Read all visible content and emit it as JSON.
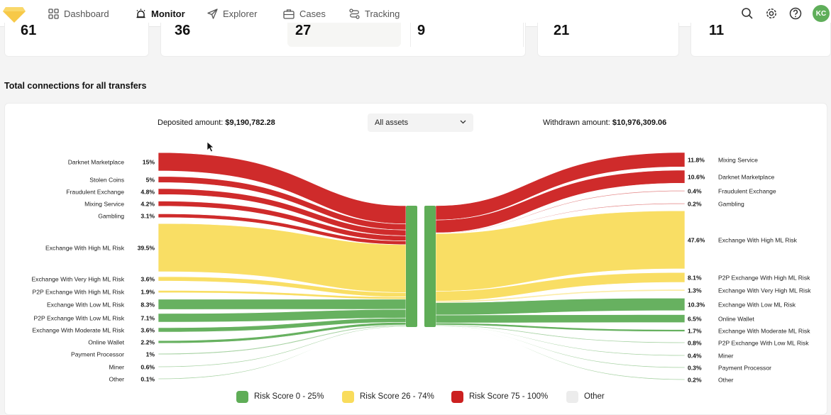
{
  "nav": {
    "items": [
      {
        "label": "Dashboard",
        "icon": "grid-icon",
        "active": false
      },
      {
        "label": "Monitor",
        "icon": "alarm-icon",
        "active": true
      },
      {
        "label": "Explorer",
        "icon": "send-icon",
        "active": false
      },
      {
        "label": "Cases",
        "icon": "briefcase-icon",
        "active": false
      },
      {
        "label": "Tracking",
        "icon": "route-icon",
        "active": false
      }
    ],
    "avatar_initials": "KC",
    "right_icons": [
      "search-icon",
      "gear-icon",
      "help-icon"
    ]
  },
  "stats": [
    "61",
    "36",
    "27",
    "9",
    "21",
    "11"
  ],
  "section_title": "Total connections for all transfers",
  "deposited": {
    "label": "Deposited amount:",
    "value": "$9,190,782.28"
  },
  "withdrawn": {
    "label": "Withdrawn amount:",
    "value": "$10,976,309.06"
  },
  "assets_select": {
    "value": "All assets"
  },
  "colors": {
    "red": "#cc2020",
    "yellow": "#f9dc5c",
    "green": "#5fad57",
    "other": "#ececec"
  },
  "left_flows": [
    {
      "label": "Darknet Marketplace",
      "pct": "15%",
      "risk": "red"
    },
    {
      "label": "Stolen Coins",
      "pct": "5%",
      "risk": "red"
    },
    {
      "label": "Fraudulent Exchange",
      "pct": "4.8%",
      "risk": "red"
    },
    {
      "label": "Mixing Service",
      "pct": "4.2%",
      "risk": "red"
    },
    {
      "label": "Gambling",
      "pct": "3.1%",
      "risk": "red"
    },
    {
      "label": "Exchange With High ML Risk",
      "pct": "39.5%",
      "risk": "yellow"
    },
    {
      "label": "Exchange With Very High ML Risk",
      "pct": "3.6%",
      "risk": "yellow"
    },
    {
      "label": "P2P Exchange With High ML Risk",
      "pct": "1.9%",
      "risk": "yellow"
    },
    {
      "label": "Exchange With Low ML Risk",
      "pct": "8.3%",
      "risk": "green"
    },
    {
      "label": "P2P Exchange With Low ML Risk",
      "pct": "7.1%",
      "risk": "green"
    },
    {
      "label": "Exchange With Moderate ML Risk",
      "pct": "3.6%",
      "risk": "green"
    },
    {
      "label": "Online Wallet",
      "pct": "2.2%",
      "risk": "green"
    },
    {
      "label": "Payment Processor",
      "pct": "1%",
      "risk": "green"
    },
    {
      "label": "Miner",
      "pct": "0.6%",
      "risk": "green"
    },
    {
      "label": "Other",
      "pct": "0.1%",
      "risk": "green"
    }
  ],
  "right_flows": [
    {
      "label": "Mixing Service",
      "pct": "11.8%",
      "risk": "red"
    },
    {
      "label": "Darknet Marketplace",
      "pct": "10.6%",
      "risk": "red"
    },
    {
      "label": "Fraudulent Exchange",
      "pct": "0.4%",
      "risk": "red"
    },
    {
      "label": "Gambling",
      "pct": "0.2%",
      "risk": "red"
    },
    {
      "label": "Exchange With High ML Risk",
      "pct": "47.6%",
      "risk": "yellow"
    },
    {
      "label": "P2P Exchange With High ML Risk",
      "pct": "8.1%",
      "risk": "yellow"
    },
    {
      "label": "Exchange With Very High ML Risk",
      "pct": "1.3%",
      "risk": "yellow"
    },
    {
      "label": "Exchange With Low ML Risk",
      "pct": "10.3%",
      "risk": "green"
    },
    {
      "label": "Online Wallet",
      "pct": "6.5%",
      "risk": "green"
    },
    {
      "label": "Exchange With Moderate ML Risk",
      "pct": "1.7%",
      "risk": "green"
    },
    {
      "label": "P2P Exchange With Low ML Risk",
      "pct": "0.8%",
      "risk": "green"
    },
    {
      "label": "Miner",
      "pct": "0.4%",
      "risk": "green"
    },
    {
      "label": "Payment Processor",
      "pct": "0.3%",
      "risk": "green"
    },
    {
      "label": "Other",
      "pct": "0.2%",
      "risk": "green"
    }
  ],
  "legend": [
    {
      "label": "Risk Score 0 - 25%",
      "color": "#5fad57"
    },
    {
      "label": "Risk Score 26 - 74%",
      "color": "#f9dc5c"
    },
    {
      "label": "Risk Score 75 - 100%",
      "color": "#cc2020"
    },
    {
      "label": "Other",
      "color": "#ececec"
    }
  ]
}
